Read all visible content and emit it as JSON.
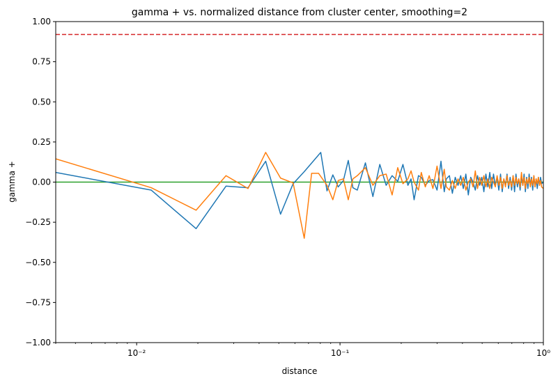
{
  "chart_data": {
    "type": "line",
    "title": "gamma + vs. normalized distance from cluster center, smoothing=2",
    "xlabel": "distance",
    "ylabel": "gamma +",
    "xscale": "log",
    "xlim": [
      0.004,
      1.0
    ],
    "ylim": [
      -1.0,
      1.0
    ],
    "grid": false,
    "legend": "none",
    "x_ticks": [
      {
        "value": 0.01,
        "label": "10⁻²"
      },
      {
        "value": 0.1,
        "label": "10⁻¹"
      },
      {
        "value": 1.0,
        "label": "10⁰"
      }
    ],
    "y_ticks": [
      -1.0,
      -0.75,
      -0.5,
      -0.25,
      0.0,
      0.25,
      0.5,
      0.75,
      1.0
    ],
    "y_tick_labels": [
      "−1.00",
      "−0.75",
      "−0.50",
      "−0.25",
      "0.00",
      "0.25",
      "0.50",
      "0.75",
      "1.00"
    ],
    "reference_lines": [
      {
        "y": 0.92,
        "color": "#d62728",
        "style": "dashed"
      },
      {
        "y": 0.0,
        "color": "#2ca02c",
        "style": "solid"
      }
    ],
    "series": [
      {
        "color": "#1f77b4",
        "x": [
          0.004,
          0.0118,
          0.0196,
          0.0275,
          0.0353,
          0.0431,
          0.051,
          0.0588,
          0.0667,
          0.0804,
          0.0863,
          0.0922,
          0.098,
          0.1039,
          0.1098,
          0.1157,
          0.1216,
          0.1333,
          0.1451,
          0.1569,
          0.1686,
          0.1804,
          0.1922,
          0.2039,
          0.2157,
          0.2235,
          0.2314,
          0.2431,
          0.251,
          0.2627,
          0.2745,
          0.2863,
          0.3,
          0.3137,
          0.3255,
          0.3333,
          0.3451,
          0.3569,
          0.3686,
          0.3804,
          0.3922,
          0.4039,
          0.4157,
          0.4275,
          0.4392,
          0.451,
          0.4627,
          0.4745,
          0.4863,
          0.498,
          0.5098,
          0.5216,
          0.5333,
          0.5451,
          0.5569,
          0.5686,
          0.5804,
          0.5922,
          0.6039,
          0.6157,
          0.6275,
          0.6392,
          0.651,
          0.6627,
          0.6745,
          0.6863,
          0.698,
          0.7098,
          0.7216,
          0.7333,
          0.7451,
          0.7569,
          0.7686,
          0.7804,
          0.7922,
          0.8039,
          0.8157,
          0.8275,
          0.8392,
          0.851,
          0.8627,
          0.8745,
          0.8863,
          0.898,
          0.9098,
          0.9216,
          0.9333,
          0.9451,
          0.9569,
          0.9686,
          0.9804,
          1.0
        ],
        "y": [
          0.06,
          -0.05,
          -0.29,
          -0.025,
          -0.035,
          0.13,
          -0.2,
          -0.01,
          0.065,
          0.185,
          -0.055,
          0.045,
          -0.03,
          0.01,
          0.135,
          -0.035,
          -0.05,
          0.12,
          -0.09,
          0.11,
          -0.02,
          0.04,
          0.005,
          0.11,
          -0.02,
          0.02,
          -0.11,
          0.04,
          0.03,
          -0.02,
          0.01,
          0.015,
          -0.05,
          0.13,
          -0.06,
          0.02,
          0.04,
          -0.07,
          0.03,
          -0.02,
          0.04,
          -0.04,
          0.05,
          -0.08,
          0.03,
          0.0,
          -0.05,
          0.04,
          -0.02,
          0.03,
          -0.06,
          0.05,
          -0.03,
          0.06,
          -0.04,
          0.05,
          -0.02,
          0.03,
          -0.05,
          0.05,
          -0.06,
          0.02,
          -0.02,
          0.05,
          -0.04,
          0.03,
          -0.05,
          0.04,
          -0.06,
          0.05,
          -0.03,
          0.02,
          -0.05,
          0.04,
          -0.02,
          0.05,
          -0.06,
          0.03,
          -0.04,
          0.05,
          -0.02,
          0.03,
          -0.05,
          0.04,
          -0.03,
          0.02,
          -0.04,
          0.03,
          -0.02,
          0.03,
          -0.01,
          0.0
        ]
      },
      {
        "color": "#ff7f0e",
        "x": [
          0.004,
          0.0118,
          0.0196,
          0.0275,
          0.0353,
          0.0431,
          0.051,
          0.0588,
          0.0667,
          0.0725,
          0.0784,
          0.0863,
          0.0922,
          0.098,
          0.1039,
          0.1098,
          0.1157,
          0.1216,
          0.1333,
          0.1451,
          0.1569,
          0.1686,
          0.1804,
          0.1922,
          0.2039,
          0.2157,
          0.2235,
          0.2314,
          0.2431,
          0.251,
          0.2627,
          0.2745,
          0.2863,
          0.3,
          0.3137,
          0.3255,
          0.3333,
          0.3451,
          0.3569,
          0.3686,
          0.3804,
          0.3922,
          0.4039,
          0.4157,
          0.4275,
          0.4392,
          0.451,
          0.4627,
          0.4745,
          0.4863,
          0.498,
          0.5098,
          0.5216,
          0.5333,
          0.5451,
          0.5569,
          0.5686,
          0.5804,
          0.5922,
          0.6039,
          0.6157,
          0.6275,
          0.6392,
          0.651,
          0.6627,
          0.6745,
          0.6863,
          0.698,
          0.7098,
          0.7216,
          0.7333,
          0.7451,
          0.7569,
          0.7686,
          0.7804,
          0.7922,
          0.8039,
          0.8157,
          0.8275,
          0.8392,
          0.851,
          0.8627,
          0.8745,
          0.8863,
          0.898,
          0.9098,
          0.9216,
          0.9333,
          0.9451,
          0.9569,
          0.9686,
          0.9804,
          1.0
        ],
        "y": [
          0.145,
          -0.035,
          -0.175,
          0.04,
          -0.04,
          0.185,
          0.025,
          -0.005,
          -0.35,
          0.055,
          0.055,
          -0.02,
          -0.11,
          0.01,
          0.02,
          -0.11,
          0.02,
          0.04,
          0.09,
          -0.02,
          0.04,
          0.05,
          -0.08,
          0.09,
          -0.01,
          0.02,
          0.07,
          0.0,
          -0.05,
          0.06,
          -0.03,
          0.04,
          -0.04,
          0.1,
          -0.04,
          0.08,
          -0.03,
          -0.05,
          0.01,
          -0.04,
          0.02,
          -0.02,
          0.03,
          -0.05,
          0.0,
          0.02,
          -0.03,
          0.07,
          -0.04,
          0.03,
          -0.02,
          0.04,
          -0.03,
          0.02,
          -0.04,
          0.03,
          0.0,
          -0.03,
          0.04,
          -0.02,
          0.03,
          -0.04,
          0.02,
          -0.03,
          0.04,
          -0.02,
          0.01,
          -0.03,
          0.04,
          -0.02,
          0.03,
          -0.01,
          0.02,
          -0.03,
          0.06,
          -0.02,
          0.03,
          -0.04,
          0.02,
          -0.01,
          0.03,
          -0.03,
          0.02,
          -0.02,
          0.04,
          -0.03,
          0.02,
          -0.01,
          0.03,
          -0.02,
          0.01,
          -0.03,
          -0.04
        ]
      }
    ]
  }
}
